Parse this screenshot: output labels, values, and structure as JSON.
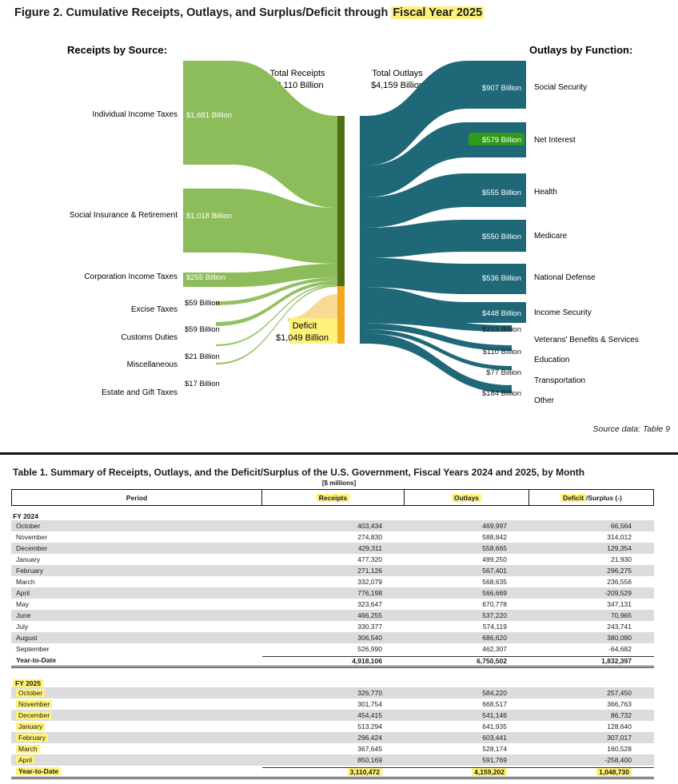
{
  "figure": {
    "title_prefix": "Figure 2. Cumulative Receipts, Outlays, and Surplus/Deficit through ",
    "title_highlight": "Fiscal Year 2025",
    "receipts_heading": "Receipts by Source:",
    "outlays_heading": "Outlays by Function:",
    "total_receipts_label": "Total Receipts",
    "total_receipts_value": "$3,110 Billion",
    "total_outlays_label": "Total Outlays",
    "total_outlays_value": "$4,159 Billion",
    "deficit_label": "Deficit",
    "deficit_value": "$1,049 Billion",
    "source_note": "Source data: Table 9",
    "colors": {
      "receipts": "#8cbd5a",
      "receipts_bar": "#4f6f12",
      "deficit": "#f0a81e",
      "outlays": "#1f6878",
      "highlight": "#fff27a",
      "green_highlight": "#2e9a17"
    }
  },
  "chart_data": {
    "type": "sankey",
    "receipts": [
      {
        "name": "Individual Income Taxes",
        "value": 1681,
        "label": "$1,681 Billion"
      },
      {
        "name": "Social Insurance & Retirement",
        "value": 1018,
        "label": "$1,018 Billion"
      },
      {
        "name": "Corporation Income Taxes",
        "value": 255,
        "label": "$255 Billion"
      },
      {
        "name": "Excise Taxes",
        "value": 59,
        "label": "$59 Billion"
      },
      {
        "name": "Customs Duties",
        "value": 59,
        "label": "$59 Billion"
      },
      {
        "name": "Miscellaneous",
        "value": 21,
        "label": "$21 Billion"
      },
      {
        "name": "Estate and Gift Taxes",
        "value": 17,
        "label": "$17 Billion"
      }
    ],
    "outlays": [
      {
        "name": "Social Security",
        "value": 907,
        "label": "$907 Billion"
      },
      {
        "name": "Net Interest",
        "value": 579,
        "label": "$579 Billion"
      },
      {
        "name": "Health",
        "value": 555,
        "label": "$555 Billion"
      },
      {
        "name": "Medicare",
        "value": 550,
        "label": "$550 Billion"
      },
      {
        "name": "National Defense",
        "value": 536,
        "label": "$536 Billion"
      },
      {
        "name": "Income Security",
        "value": 448,
        "label": "$448 Billion"
      },
      {
        "name": "Veterans' Benefits & Services",
        "value": 213,
        "label": "$213 Billion"
      },
      {
        "name": "Education",
        "value": 110,
        "label": "$110 Billion"
      },
      {
        "name": "Transportation",
        "value": 77,
        "label": "$77 Billion"
      },
      {
        "name": "Other",
        "value": 184,
        "label": "$184 Billion"
      }
    ],
    "total_receipts": 3110,
    "total_outlays": 4159,
    "deficit": 1049
  },
  "table": {
    "title": "Table 1. Summary of Receipts, Outlays, and the Deficit/Surplus of the U.S. Government, Fiscal Years 2024 and 2025, by Month",
    "units": "[$ millions]",
    "headers": {
      "period": "Period",
      "receipts": "Receipts",
      "outlays": "Outlays",
      "deficit_hl": "Deficit",
      "deficit_rest": "/Surplus (-)"
    },
    "fy2024": {
      "label": "FY 2024",
      "rows": [
        [
          "October",
          "403,434",
          "469,997",
          "66,564"
        ],
        [
          "November",
          "274,830",
          "588,842",
          "314,012"
        ],
        [
          "December",
          "429,311",
          "558,665",
          "129,354"
        ],
        [
          "January",
          "477,320",
          "499,250",
          "21,930"
        ],
        [
          "February",
          "271,126",
          "567,401",
          "296,275"
        ],
        [
          "March",
          "332,079",
          "568,635",
          "236,556"
        ],
        [
          "April",
          "776,198",
          "566,669",
          "-209,529"
        ],
        [
          "May",
          "323,647",
          "670,778",
          "347,131"
        ],
        [
          "June",
          "466,255",
          "537,220",
          "70,965"
        ],
        [
          "July",
          "330,377",
          "574,119",
          "243,741"
        ],
        [
          "August",
          "306,540",
          "686,620",
          "380,080"
        ],
        [
          "September",
          "526,990",
          "462,307",
          "-64,682"
        ]
      ],
      "ytd": [
        "Year-to-Date",
        "4,918,106",
        "6,750,502",
        "1,832,397"
      ]
    },
    "fy2025": {
      "label": "FY 2025",
      "rows": [
        [
          "October",
          "326,770",
          "584,220",
          "257,450"
        ],
        [
          "November",
          "301,754",
          "668,517",
          "366,763"
        ],
        [
          "December",
          "454,415",
          "541,146",
          "86,732"
        ],
        [
          "January",
          "513,294",
          "641,935",
          "128,640"
        ],
        [
          "February",
          "296,424",
          "603,441",
          "307,017"
        ],
        [
          "March",
          "367,645",
          "528,174",
          "160,528"
        ],
        [
          "April",
          "850,169",
          "591,769",
          "-258,400"
        ]
      ],
      "ytd": [
        "Year-to-Date",
        "3,110,472",
        "4,159,202",
        "1,048,730"
      ]
    }
  }
}
